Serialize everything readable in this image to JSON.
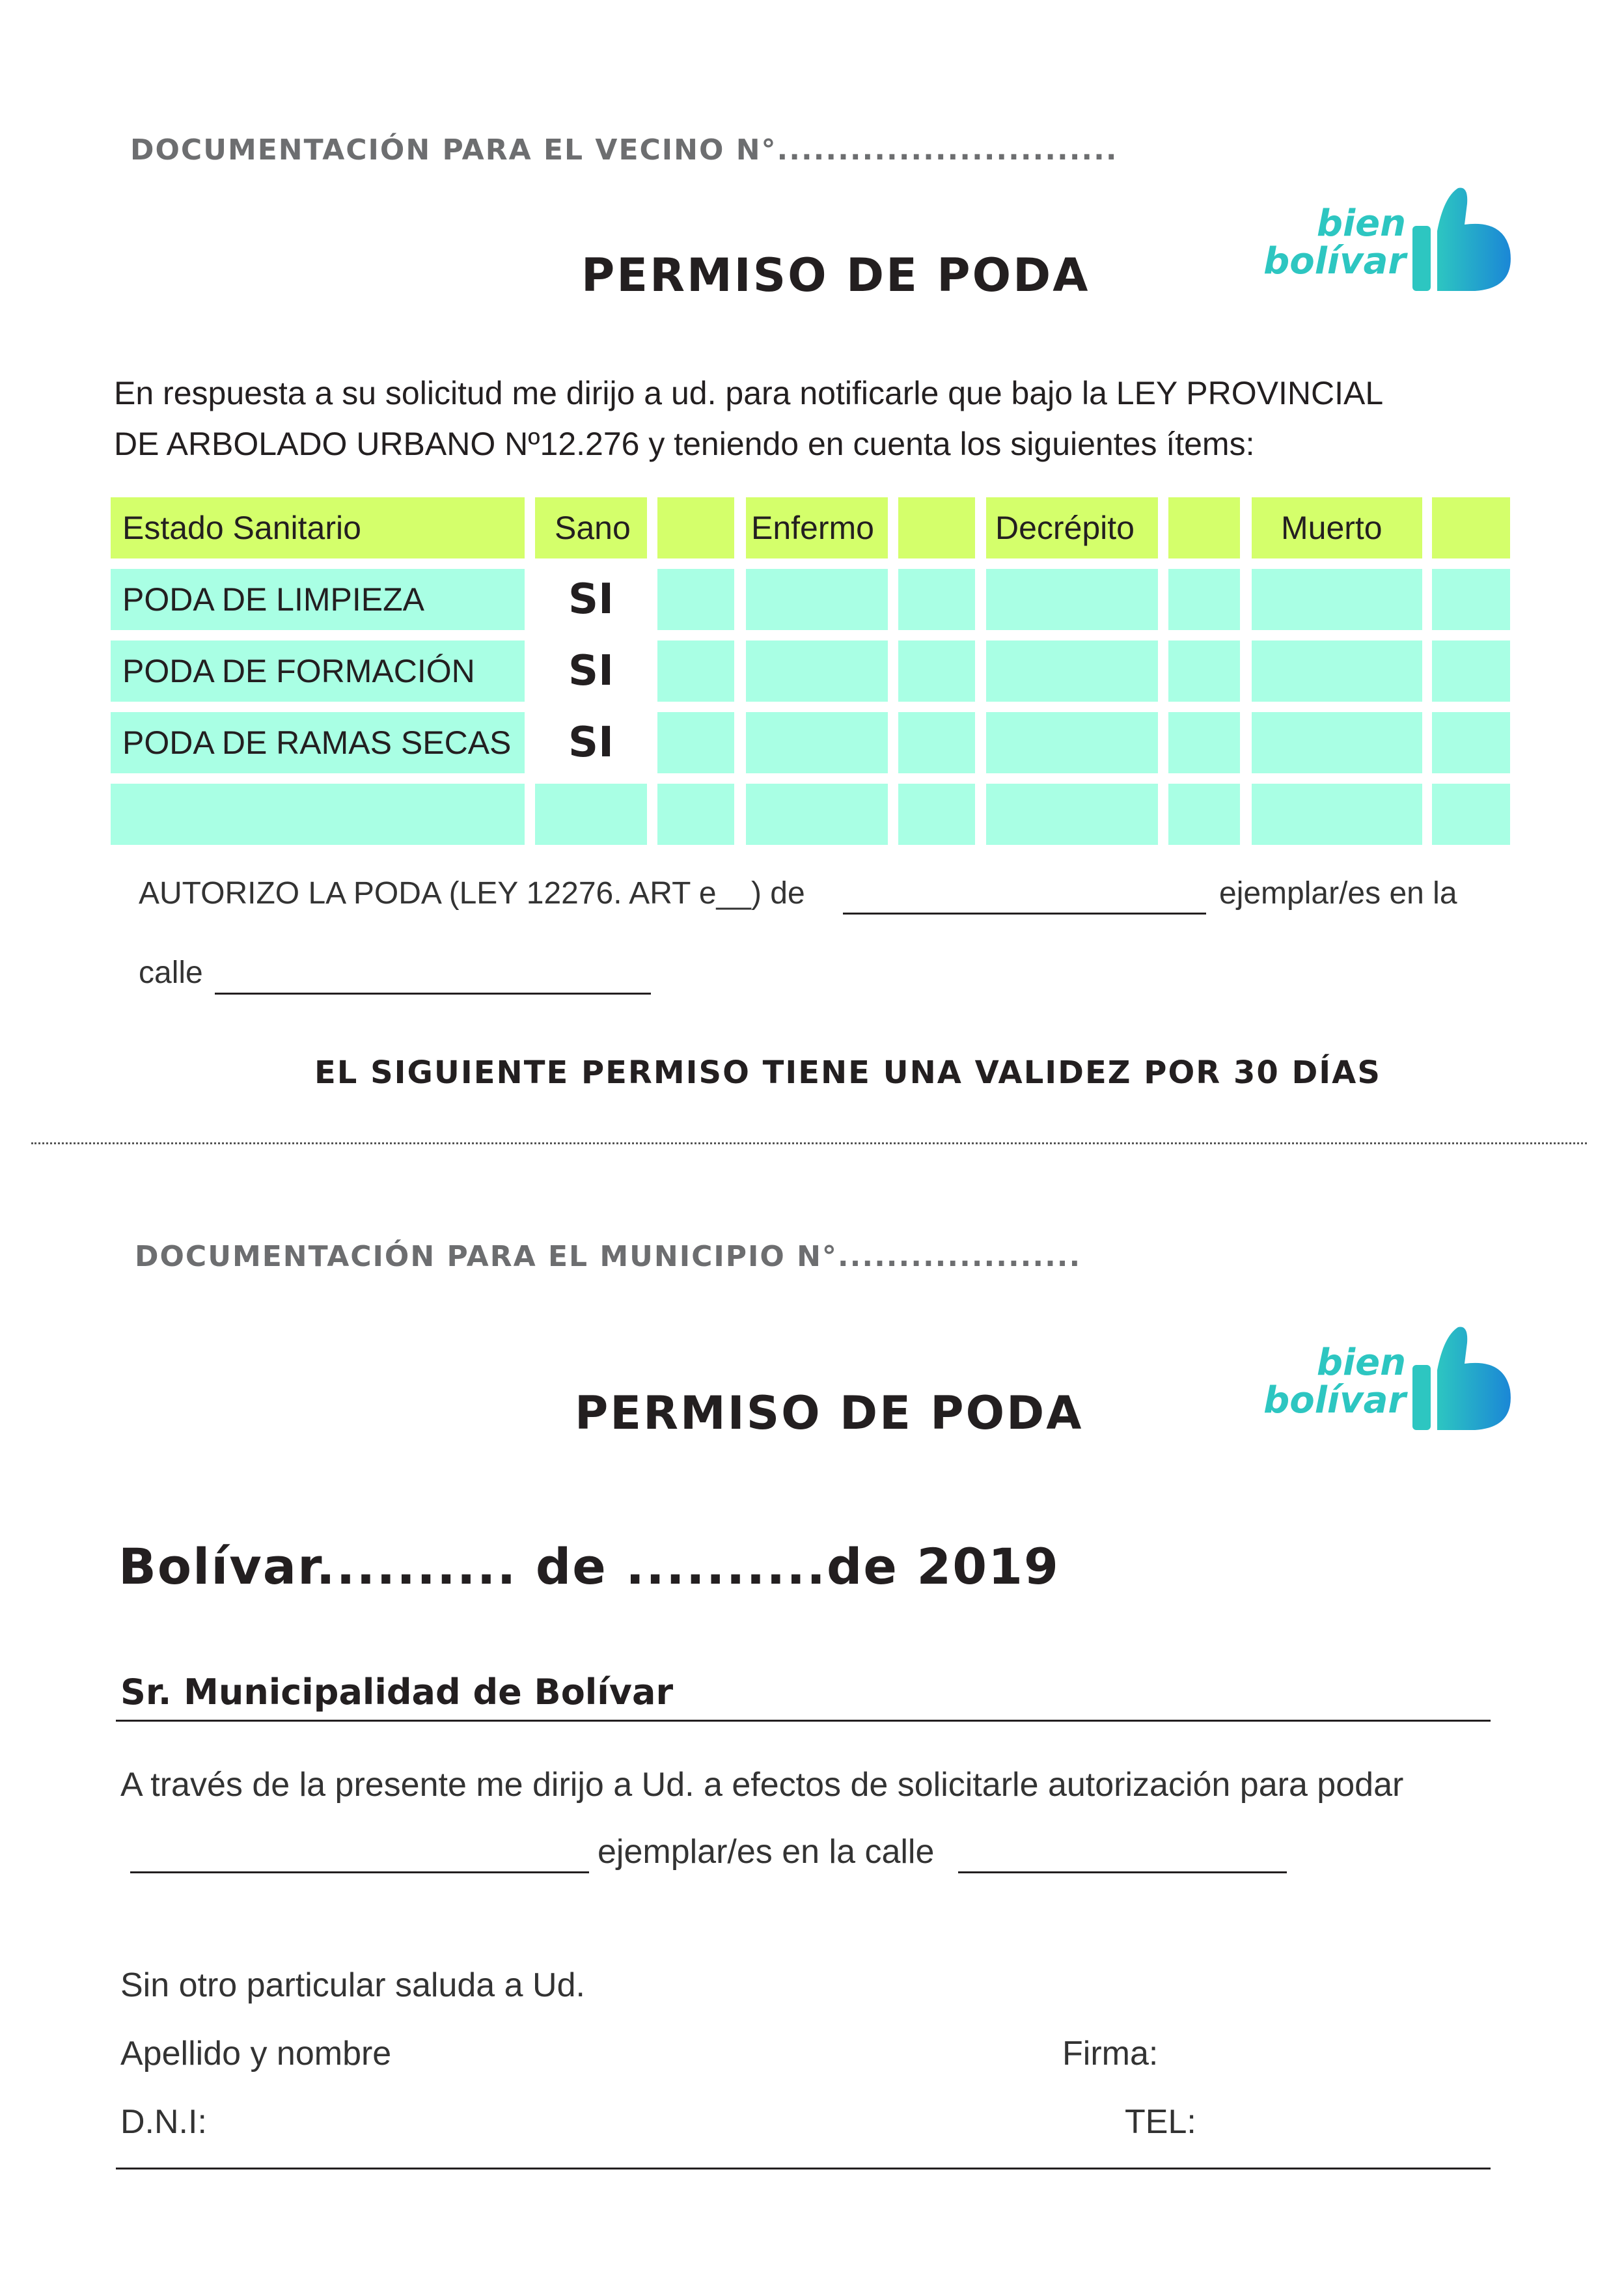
{
  "brand": {
    "word1": "bien",
    "word2": "bolívar",
    "mark_icon": "thumbs-up-b-icon",
    "colors": {
      "teal": "#2dc6c1",
      "blue": "#1b87d6"
    }
  },
  "vecino_section": {
    "doc_label": "DOCUMENTACIÓN PARA  EL VECINO N°............................",
    "title": "PERMISO DE PODA",
    "intro_line1": "En respuesta a su solicitud me dirijo a ud. para notificarle que  bajo la LEY PROVINCIAL",
    "intro_line2": "DE ARBOLADO URBANO Nº12.276 y teniendo en cuenta los siguientes ítems:",
    "table": {
      "headers": [
        "Estado Sanitario",
        "Sano",
        "Enfermo",
        "Decrépito",
        "Muerto"
      ],
      "rows": [
        {
          "label": "PODA DE LIMPIEZA",
          "sano": "SI"
        },
        {
          "label": "PODA DE FORMACIÓN",
          "sano": "SI"
        },
        {
          "label": "PODA DE RAMAS SECAS",
          "sano": "SI"
        },
        {
          "label": "",
          "sano": ""
        }
      ],
      "colors": {
        "header": "#d4ff6b",
        "body": "#a9ffe4"
      }
    },
    "autorizo_prefix": "AUTORIZO LA PODA   (LEY 12276. ART e__) de",
    "autorizo_suffix": "ejemplar/es en la",
    "calle_label": "calle",
    "validity": "EL SIGUIENTE PERMISO TIENE UNA VALIDEZ POR 30 DÍAS"
  },
  "municipio_section": {
    "doc_label": "DOCUMENTACIÓN PARA EL MUNICIPIO N°....................",
    "title": "PERMISO DE PODA",
    "date_line": "Bolívar.......... de ..........de 2019",
    "addressee": "Sr. Municipalidad de Bolívar",
    "request_line": "A través de la presente me dirijo a  Ud. a efectos de solicitarle autorización para podar",
    "ejemplar_text": "ejemplar/es en la calle",
    "closing": "Sin otro particular saluda a Ud.",
    "apellido_label": "Apellido y nombre",
    "firma_label": "Firma:",
    "dni_label": "D.N.I:",
    "tel_label": "TEL:"
  }
}
